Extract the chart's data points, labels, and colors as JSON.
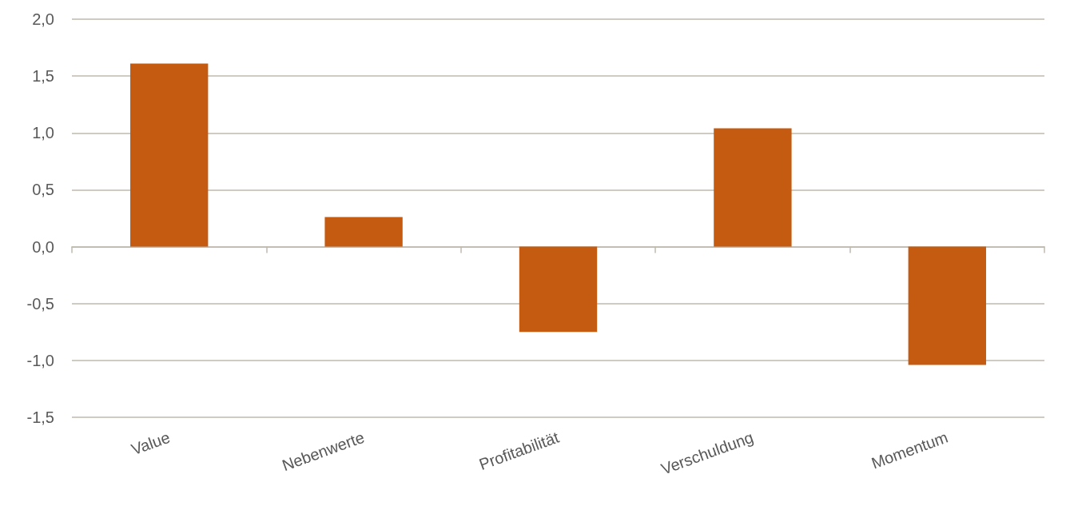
{
  "chart_data": {
    "type": "bar",
    "categories": [
      "Value",
      "Nebenwerte",
      "Profitabilität",
      "Verschuldung",
      "Momentum"
    ],
    "values": [
      1.61,
      0.26,
      -0.75,
      1.04,
      -1.04
    ],
    "color": "#c55a11",
    "ylim": [
      -1.5,
      2.0
    ],
    "yticks": [
      {
        "value": -1.5,
        "label": "-1,5"
      },
      {
        "value": -1.0,
        "label": "-1,0"
      },
      {
        "value": -0.5,
        "label": "-0,5"
      },
      {
        "value": 0,
        "label": "0,0"
      },
      {
        "value": 0.5,
        "label": "0,5"
      },
      {
        "value": 1.0,
        "label": "1,0"
      },
      {
        "value": 1.5,
        "label": "1,5"
      },
      {
        "value": 2.0,
        "label": "2,0"
      }
    ],
    "grid": "y"
  }
}
